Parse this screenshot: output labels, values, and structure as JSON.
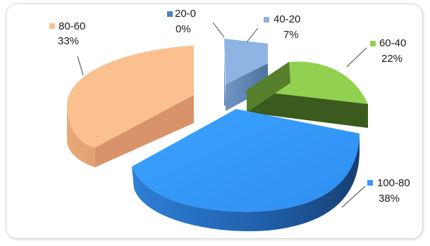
{
  "chart_data": {
    "type": "pie",
    "style": "3d-exploded",
    "slices": [
      {
        "label": "100-80",
        "percent_label": "38%",
        "value": 38,
        "color": "#3399ff"
      },
      {
        "label": "60-40",
        "percent_label": "22%",
        "value": 22,
        "color": "#92d050"
      },
      {
        "label": "40-20",
        "percent_label": "7%",
        "value": 7,
        "color": "#8eb4e3"
      },
      {
        "label": "20-0",
        "percent_label": "0%",
        "value": 0,
        "color": "#4f81bd"
      },
      {
        "label": "80-60",
        "percent_label": "33%",
        "value": 33,
        "color": "#fac090"
      }
    ]
  }
}
